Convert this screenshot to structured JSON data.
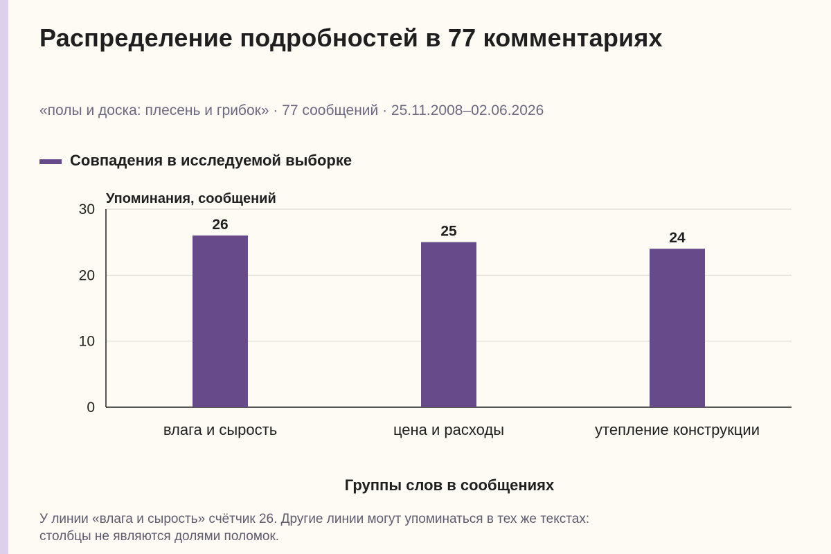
{
  "title": "Распределение подробностей в 77 комментариях",
  "subtitle": "«полы и доска: плесень и грибок» · 77 сообщений · 25.11.2008–02.06.2026",
  "footnote": {
    "line1": "У линии «влага и сырость» счётчик 26. Другие линии могут упоминаться в тех же текстах:",
    "line2": "столбцы не являются долями поломок."
  },
  "colors": {
    "bar": "#674a89",
    "grid": "#d9d6cf",
    "axis": "#1f1f1f",
    "background": "#fdfbf3",
    "side_strip": "#ddd0ec"
  },
  "chart_data": {
    "type": "bar",
    "categories": [
      "влага и сырость",
      "цена и расходы",
      "утепление конструкции"
    ],
    "series": [
      {
        "name": "Совпадения в исследуемой выборке",
        "values": [
          26,
          25,
          24
        ]
      }
    ],
    "ylabel": "Упоминания, сообщений",
    "xlabel": "Группы слов в сообщениях",
    "ylim": [
      0,
      30
    ],
    "yticks": [
      0,
      10,
      20,
      30
    ],
    "grid": true,
    "legend_position": "top-left",
    "data_labels": true
  }
}
